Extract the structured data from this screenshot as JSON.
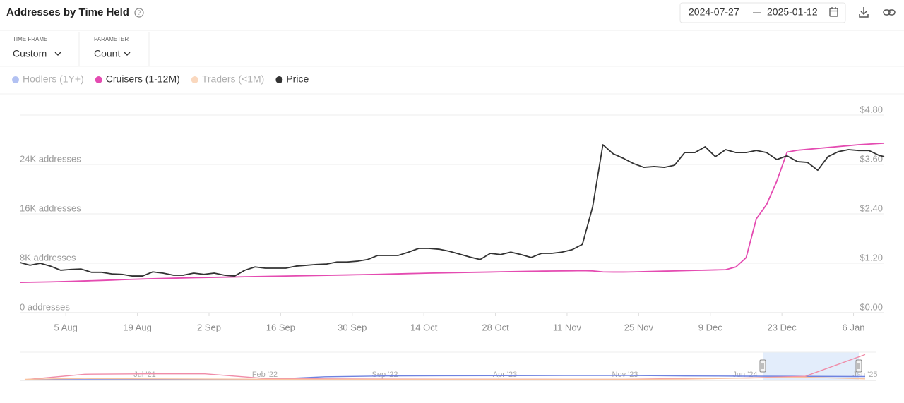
{
  "header": {
    "title": "Addresses by Time Held",
    "date_from": "2024-07-27",
    "date_to": "2025-01-12"
  },
  "controls": [
    {
      "label": "TIME FRAME",
      "value": "Custom"
    },
    {
      "label": "PARAMETER",
      "value": "Count"
    }
  ],
  "chart_data": [
    {
      "type": "line",
      "x": [
        "2024-07-27",
        "2024-07-29",
        "2024-07-31",
        "2024-08-02",
        "2024-08-04",
        "2024-08-06",
        "2024-08-08",
        "2024-08-10",
        "2024-08-12",
        "2024-08-14",
        "2024-08-16",
        "2024-08-18",
        "2024-08-20",
        "2024-08-22",
        "2024-08-24",
        "2024-08-26",
        "2024-08-28",
        "2024-08-30",
        "2024-09-01",
        "2024-09-03",
        "2024-09-05",
        "2024-09-07",
        "2024-09-09",
        "2024-09-11",
        "2024-09-13",
        "2024-09-15",
        "2024-09-17",
        "2024-09-19",
        "2024-09-21",
        "2024-09-23",
        "2024-09-25",
        "2024-09-27",
        "2024-09-29",
        "2024-10-01",
        "2024-10-03",
        "2024-10-05",
        "2024-10-07",
        "2024-10-09",
        "2024-10-11",
        "2024-10-13",
        "2024-10-15",
        "2024-10-17",
        "2024-10-19",
        "2024-10-21",
        "2024-10-23",
        "2024-10-25",
        "2024-10-27",
        "2024-10-29",
        "2024-10-31",
        "2024-11-02",
        "2024-11-04",
        "2024-11-06",
        "2024-11-08",
        "2024-11-10",
        "2024-11-12",
        "2024-11-14",
        "2024-11-16",
        "2024-11-18",
        "2024-11-20",
        "2024-11-22",
        "2024-11-24",
        "2024-11-26",
        "2024-11-28",
        "2024-11-30",
        "2024-12-02",
        "2024-12-04",
        "2024-12-06",
        "2024-12-08",
        "2024-12-10",
        "2024-12-12",
        "2024-12-14",
        "2024-12-16",
        "2024-12-18",
        "2024-12-20",
        "2024-12-22",
        "2024-12-24",
        "2024-12-26",
        "2024-12-28",
        "2024-12-30",
        "2025-01-01",
        "2025-01-03",
        "2025-01-05",
        "2025-01-07",
        "2025-01-09",
        "2025-01-11",
        "2025-01-12"
      ],
      "xlim": [
        "2024-07-27",
        "2025-01-12"
      ],
      "xticks": [
        {
          "value": "2024-08-05",
          "label": "5 Aug"
        },
        {
          "value": "2024-08-19",
          "label": "19 Aug"
        },
        {
          "value": "2024-09-02",
          "label": "2 Sep"
        },
        {
          "value": "2024-09-16",
          "label": "16 Sep"
        },
        {
          "value": "2024-09-30",
          "label": "30 Sep"
        },
        {
          "value": "2024-10-14",
          "label": "14 Oct"
        },
        {
          "value": "2024-10-28",
          "label": "28 Oct"
        },
        {
          "value": "2024-11-11",
          "label": "11 Nov"
        },
        {
          "value": "2024-11-25",
          "label": "25 Nov"
        },
        {
          "value": "2024-12-09",
          "label": "9 Dec"
        },
        {
          "value": "2024-12-23",
          "label": "23 Dec"
        },
        {
          "value": "2025-01-06",
          "label": "6 Jan"
        }
      ],
      "ylim": [
        0,
        32000
      ],
      "yticks": [
        {
          "value": 0,
          "label": "0 addresses"
        },
        {
          "value": 8000,
          "label": "8K addresses"
        },
        {
          "value": 16000,
          "label": "16K addresses"
        },
        {
          "value": 24000,
          "label": "24K addresses"
        }
      ],
      "y2lim": [
        0,
        4.8
      ],
      "y2ticks": [
        {
          "value": 0,
          "label": "$0.00"
        },
        {
          "value": 1.2,
          "label": "$1.20"
        },
        {
          "value": 2.4,
          "label": "$2.40"
        },
        {
          "value": 3.6,
          "label": "$3.60"
        },
        {
          "value": 4.8,
          "label": "$4.80"
        }
      ],
      "grid": true,
      "legend": "top-left",
      "series": [
        {
          "name": "Hodlers (1Y+)",
          "color": "#7f98ea",
          "visible": false
        },
        {
          "name": "Cruisers (1-12M)",
          "color": "#e44bb1",
          "values": [
            4900,
            4930,
            4960,
            4990,
            5030,
            5070,
            5120,
            5170,
            5220,
            5280,
            5340,
            5400,
            5450,
            5500,
            5540,
            5580,
            5620,
            5660,
            5690,
            5720,
            5750,
            5780,
            5810,
            5840,
            5870,
            5900,
            5930,
            5960,
            5990,
            6020,
            6050,
            6080,
            6110,
            6140,
            6170,
            6200,
            6240,
            6280,
            6320,
            6360,
            6400,
            6430,
            6460,
            6490,
            6520,
            6550,
            6580,
            6610,
            6640,
            6670,
            6700,
            6720,
            6740,
            6760,
            6780,
            6800,
            6760,
            6600,
            6580,
            6580,
            6600,
            6640,
            6680,
            6720,
            6760,
            6800,
            6840,
            6880,
            6920,
            6960,
            7400,
            8900,
            15200,
            17500,
            21300,
            26000,
            26300,
            26450,
            26600,
            26750,
            26900,
            27050,
            27200,
            27300,
            27400,
            27450
          ]
        },
        {
          "name": "Traders (<1M)",
          "color": "#f7be92",
          "visible": false
        },
        {
          "name": "Price",
          "color": "#333333",
          "axis": "y2",
          "values": [
            1.22,
            1.15,
            1.2,
            1.13,
            1.03,
            1.05,
            1.06,
            0.98,
            0.98,
            0.94,
            0.93,
            0.89,
            0.89,
            0.99,
            0.96,
            0.91,
            0.91,
            0.96,
            0.93,
            0.96,
            0.91,
            0.89,
            1.03,
            1.11,
            1.08,
            1.08,
            1.08,
            1.13,
            1.15,
            1.17,
            1.18,
            1.23,
            1.23,
            1.25,
            1.29,
            1.39,
            1.39,
            1.39,
            1.47,
            1.56,
            1.56,
            1.54,
            1.49,
            1.42,
            1.35,
            1.29,
            1.44,
            1.41,
            1.47,
            1.41,
            1.34,
            1.44,
            1.44,
            1.47,
            1.53,
            1.66,
            2.57,
            4.08,
            3.86,
            3.75,
            3.62,
            3.53,
            3.55,
            3.53,
            3.58,
            3.89,
            3.89,
            4.03,
            3.79,
            3.96,
            3.89,
            3.89,
            3.94,
            3.89,
            3.72,
            3.81,
            3.67,
            3.65,
            3.46,
            3.79,
            3.91,
            3.96,
            3.94,
            3.94,
            3.82,
            3.79
          ]
        }
      ]
    },
    {
      "type": "line",
      "categories": [
        null,
        null,
        "Jul '21",
        null,
        "Feb '22",
        null,
        "Sep '22",
        null,
        "Apr '23",
        null,
        "Nov '23",
        null,
        "Jun '24",
        null,
        "Jan '25"
      ],
      "ylim": [
        0,
        32000
      ],
      "series": [
        {
          "color": "#6f82e0",
          "values": [
            0,
            0,
            0,
            0,
            300,
            3500,
            4500,
            4700,
            4800,
            5000,
            5000,
            4500,
            4200,
            4000,
            3800
          ]
        },
        {
          "color": "#f08ca8",
          "values": [
            0,
            6500,
            7000,
            7000,
            1500,
            1000,
            800,
            700,
            600,
            500,
            500,
            1500,
            2000,
            4000,
            30000
          ]
        },
        {
          "color": "#f8c3a0",
          "values": [
            500,
            1500,
            1000,
            800,
            600,
            500,
            500,
            500,
            500,
            500,
            500,
            800,
            2000,
            3000,
            1000
          ]
        }
      ]
    }
  ]
}
